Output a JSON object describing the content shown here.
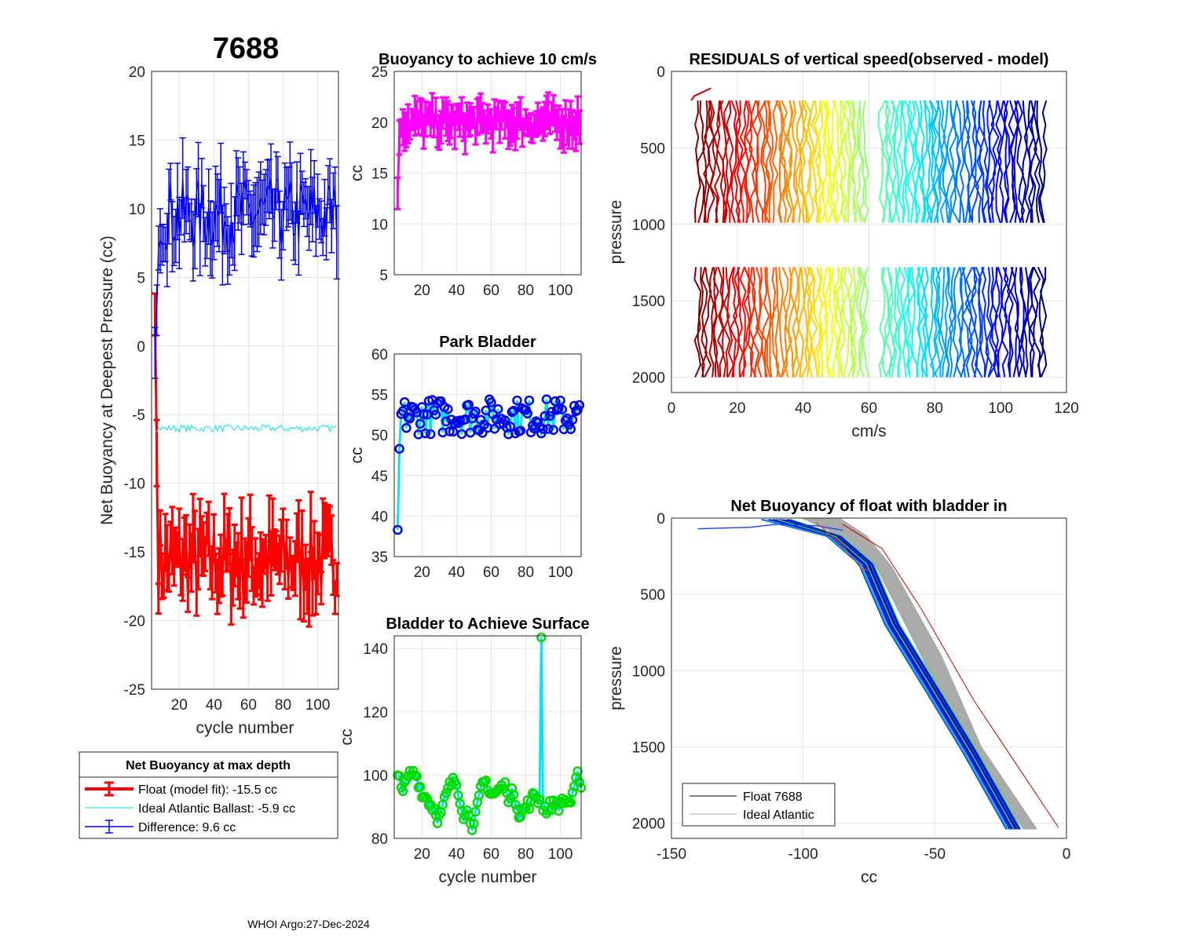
{
  "float_id": "7688",
  "footer": "WHOI Argo:27-Dec-2024",
  "chart_data": [
    {
      "id": "net",
      "type": "line",
      "title": "",
      "xlabel": "cycle number",
      "ylabel": "Net Buoyancy at Deepest Pressure (cc)",
      "xlim": [
        4,
        112
      ],
      "ylim": [
        -25,
        20
      ],
      "xticks": [
        20,
        40,
        60,
        80,
        100
      ],
      "yticks": [
        -25,
        -20,
        -15,
        -10,
        -5,
        0,
        5,
        10,
        15,
        20
      ],
      "series": [
        {
          "name": "Float (model fit): -15.5 cc",
          "color": "#ff0000",
          "mean": -15.6,
          "start": [
            2.3,
            -7.8
          ],
          "noise": 2.0,
          "err": 1.8
        },
        {
          "name": "Ideal Atlantic Ballast:  -5.9 cc",
          "color": "#00e5e5",
          "mean": -6.0,
          "noise": 0.18
        },
        {
          "name": "Difference:   9.6 cc",
          "color": "#0000ff",
          "mean": 9.6,
          "start": [
            -0.5,
            2.6
          ],
          "noise": 1.9,
          "err": 2.1
        }
      ],
      "legend": {
        "title": "Net Buoyancy at max depth",
        "entries": [
          "Float (model fit): -15.5 cc",
          "Ideal Atlantic Ballast:  -5.9 cc",
          "Difference:   9.6 cc"
        ]
      }
    },
    {
      "id": "buoy10",
      "type": "line",
      "title": "Buoyancy to achieve 10 cm/s",
      "xlabel": "",
      "ylabel": "cc",
      "xlim": [
        4,
        112
      ],
      "ylim": [
        5,
        25
      ],
      "xticks": [
        20,
        40,
        60,
        80,
        100
      ],
      "yticks": [
        5,
        10,
        15,
        20,
        25
      ],
      "series": [
        {
          "name": "buoyancy",
          "color": "#ff00ff",
          "mean": 20.0,
          "start": [
            13.0,
            18.5
          ],
          "noise": 0.9,
          "err": 1.4
        }
      ]
    },
    {
      "id": "park",
      "type": "line",
      "title": "Park Bladder",
      "xlabel": "",
      "ylabel": "cc",
      "xlim": [
        4,
        112
      ],
      "ylim": [
        35,
        60
      ],
      "xticks": [
        20,
        40,
        60,
        80,
        100
      ],
      "yticks": [
        35,
        40,
        45,
        50,
        55,
        60
      ],
      "series": [
        {
          "name": "park bladder",
          "color": "#00e5ff",
          "marker": "#0000ee",
          "mean": 52.3,
          "start": [
            38.3,
            48.3
          ],
          "noise": 1.6
        }
      ]
    },
    {
      "id": "surface",
      "type": "line",
      "title": "Bladder to Achieve Surface",
      "xlabel": "cycle number",
      "ylabel": "cc",
      "xlim": [
        4,
        112
      ],
      "ylim": [
        80,
        144
      ],
      "xticks": [
        20,
        40,
        60,
        80,
        100
      ],
      "yticks": [
        80,
        100,
        120,
        140
      ],
      "spike": {
        "x": 89,
        "y": 143.5
      },
      "series": [
        {
          "name": "surface bladder",
          "color": "#00e5ff",
          "marker": "#00dd00",
          "mean": 94,
          "noise": 5.0
        }
      ]
    },
    {
      "id": "residuals",
      "type": "line",
      "title": "RESIDUALS of vertical speed(observed - model)",
      "xlabel": "cm/s",
      "ylabel": "pressure",
      "xlim": [
        0,
        120
      ],
      "ylim": [
        0,
        2100
      ],
      "xticks": [
        0,
        20,
        40,
        60,
        80,
        100,
        120
      ],
      "yticks": [
        0,
        500,
        1000,
        1500,
        2000
      ],
      "profile_count": 108,
      "x_range": [
        8,
        113
      ]
    },
    {
      "id": "netprof",
      "type": "line",
      "title": "Net Buoyancy of float with bladder in",
      "xlabel": "cc",
      "ylabel": "pressure",
      "xlim": [
        -150,
        0
      ],
      "ylim": [
        0,
        2100
      ],
      "xticks": [
        -150,
        -100,
        -50,
        0
      ],
      "yticks": [
        0,
        500,
        1000,
        1500,
        2000
      ],
      "legend": {
        "entries": [
          "Float 7688",
          "Ideal Atlantic"
        ],
        "colors": [
          "#000000",
          "#aaaaaa"
        ]
      }
    }
  ]
}
